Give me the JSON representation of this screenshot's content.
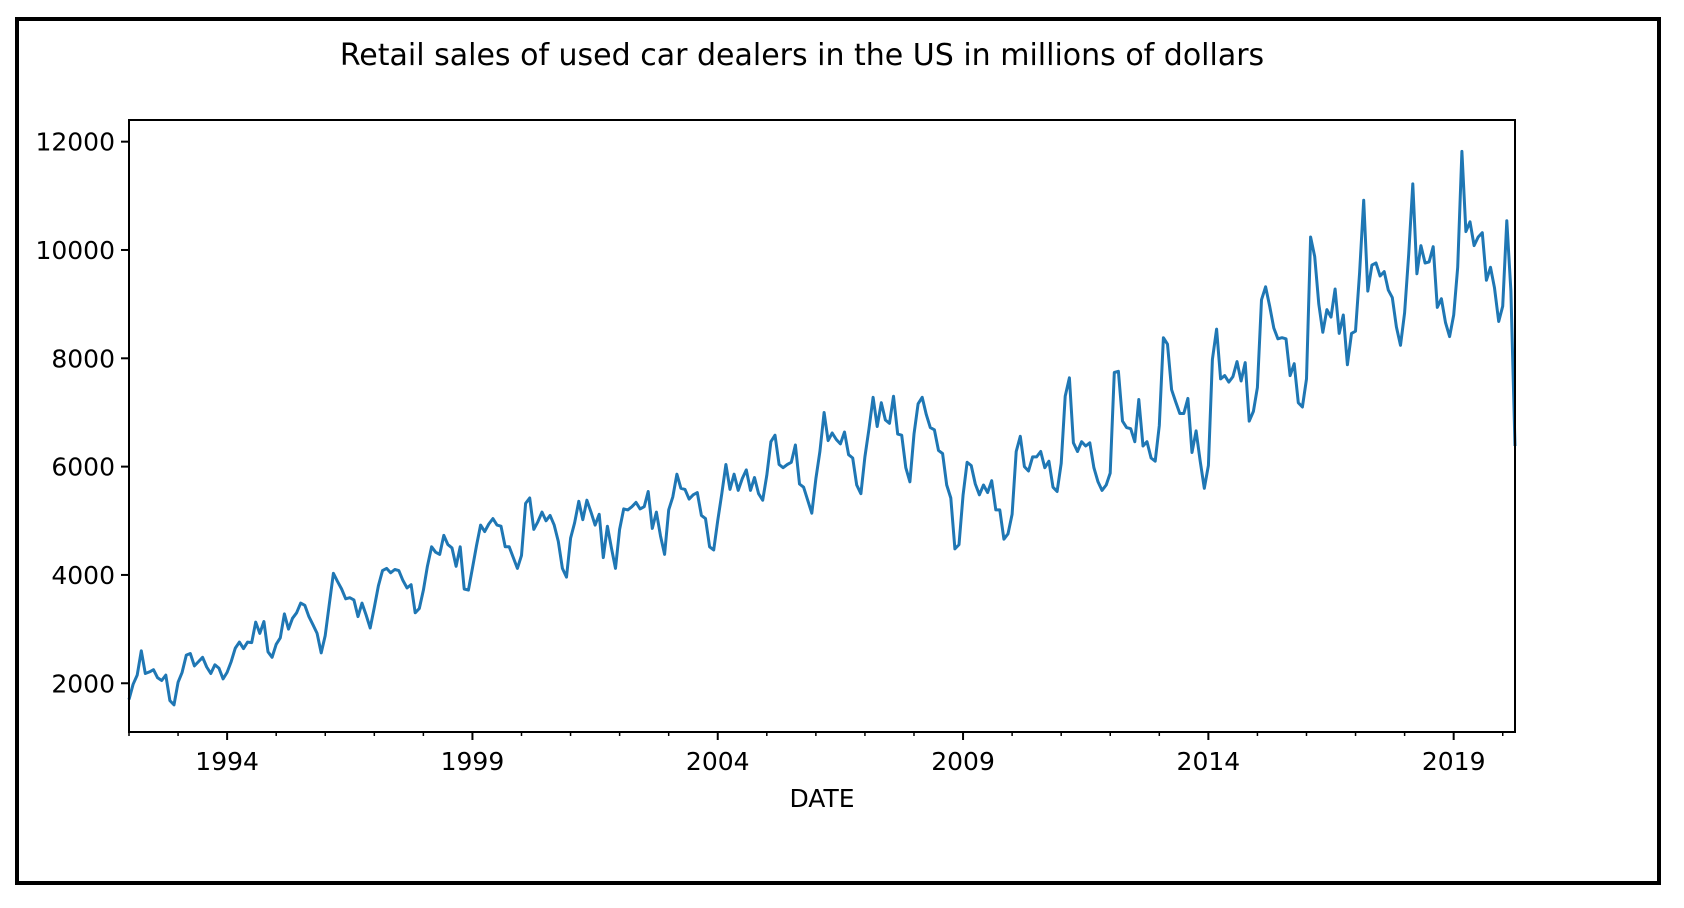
{
  "chart_data": {
    "type": "line",
    "title": "Retail sales of used car dealers in the US in millions of dollars",
    "xlabel": "DATE",
    "ylabel": "",
    "xlim": [
      1992.0,
      2020.25
    ],
    "ylim": [
      1100,
      12400
    ],
    "xticks": [
      1994,
      1999,
      2004,
      2009,
      2014,
      2019
    ],
    "xtick_labels": [
      "1994",
      "1999",
      "2004",
      "2009",
      "2014",
      "2019"
    ],
    "yticks": [
      2000,
      4000,
      6000,
      8000,
      10000,
      12000
    ],
    "ytick_labels": [
      "2000",
      "4000",
      "6000",
      "8000",
      "10000",
      "12000"
    ],
    "grid": false,
    "series": [
      {
        "name": "Retail sales of used car dealers",
        "color": "#1f77b4",
        "x": [
          1992.0,
          1992.083,
          1992.167,
          1992.25,
          1992.333,
          1992.417,
          1992.5,
          1992.583,
          1992.667,
          1992.75,
          1992.833,
          1992.917,
          1993.0,
          1993.083,
          1993.167,
          1993.25,
          1993.333,
          1993.417,
          1993.5,
          1993.583,
          1993.667,
          1993.75,
          1993.833,
          1993.917,
          1994.0,
          1994.083,
          1994.167,
          1994.25,
          1994.333,
          1994.417,
          1994.5,
          1994.583,
          1994.667,
          1994.75,
          1994.833,
          1994.917,
          1995.0,
          1995.083,
          1995.167,
          1995.25,
          1995.333,
          1995.417,
          1995.5,
          1995.583,
          1995.667,
          1995.75,
          1995.833,
          1995.917,
          1996.0,
          1996.083,
          1996.167,
          1996.25,
          1996.333,
          1996.417,
          1996.5,
          1996.583,
          1996.667,
          1996.75,
          1996.833,
          1996.917,
          1997.0,
          1997.083,
          1997.167,
          1997.25,
          1997.333,
          1997.417,
          1997.5,
          1997.583,
          1997.667,
          1997.75,
          1997.833,
          1997.917,
          1998.0,
          1998.083,
          1998.167,
          1998.25,
          1998.333,
          1998.417,
          1998.5,
          1998.583,
          1998.667,
          1998.75,
          1998.833,
          1998.917,
          1999.0,
          1999.083,
          1999.167,
          1999.25,
          1999.333,
          1999.417,
          1999.5,
          1999.583,
          1999.667,
          1999.75,
          1999.833,
          1999.917,
          2000.0,
          2000.083,
          2000.167,
          2000.25,
          2000.333,
          2000.417,
          2000.5,
          2000.583,
          2000.667,
          2000.75,
          2000.833,
          2000.917,
          2001.0,
          2001.083,
          2001.167,
          2001.25,
          2001.333,
          2001.417,
          2001.5,
          2001.583,
          2001.667,
          2001.75,
          2001.833,
          2001.917,
          2002.0,
          2002.083,
          2002.167,
          2002.25,
          2002.333,
          2002.417,
          2002.5,
          2002.583,
          2002.667,
          2002.75,
          2002.833,
          2002.917,
          2003.0,
          2003.083,
          2003.167,
          2003.25,
          2003.333,
          2003.417,
          2003.5,
          2003.583,
          2003.667,
          2003.75,
          2003.833,
          2003.917,
          2004.0,
          2004.083,
          2004.167,
          2004.25,
          2004.333,
          2004.417,
          2004.5,
          2004.583,
          2004.667,
          2004.75,
          2004.833,
          2004.917,
          2005.0,
          2005.083,
          2005.167,
          2005.25,
          2005.333,
          2005.417,
          2005.5,
          2005.583,
          2005.667,
          2005.75,
          2005.833,
          2005.917,
          2006.0,
          2006.083,
          2006.167,
          2006.25,
          2006.333,
          2006.417,
          2006.5,
          2006.583,
          2006.667,
          2006.75,
          2006.833,
          2006.917,
          2007.0,
          2007.083,
          2007.167,
          2007.25,
          2007.333,
          2007.417,
          2007.5,
          2007.583,
          2007.667,
          2007.75,
          2007.833,
          2007.917,
          2008.0,
          2008.083,
          2008.167,
          2008.25,
          2008.333,
          2008.417,
          2008.5,
          2008.583,
          2008.667,
          2008.75,
          2008.833,
          2008.917,
          2009.0,
          2009.083,
          2009.167,
          2009.25,
          2009.333,
          2009.417,
          2009.5,
          2009.583,
          2009.667,
          2009.75,
          2009.833,
          2009.917,
          2010.0,
          2010.083,
          2010.167,
          2010.25,
          2010.333,
          2010.417,
          2010.5,
          2010.583,
          2010.667,
          2010.75,
          2010.833,
          2010.917,
          2011.0,
          2011.083,
          2011.167,
          2011.25,
          2011.333,
          2011.417,
          2011.5,
          2011.583,
          2011.667,
          2011.75,
          2011.833,
          2011.917,
          2012.0,
          2012.083,
          2012.167,
          2012.25,
          2012.333,
          2012.417,
          2012.5,
          2012.583,
          2012.667,
          2012.75,
          2012.833,
          2012.917,
          2013.0,
          2013.083,
          2013.167,
          2013.25,
          2013.333,
          2013.417,
          2013.5,
          2013.583,
          2013.667,
          2013.75,
          2013.833,
          2013.917,
          2014.0,
          2014.083,
          2014.167,
          2014.25,
          2014.333,
          2014.417,
          2014.5,
          2014.583,
          2014.667,
          2014.75,
          2014.833,
          2014.917,
          2015.0,
          2015.083,
          2015.167,
          2015.25,
          2015.333,
          2015.417,
          2015.5,
          2015.583,
          2015.667,
          2015.75,
          2015.833,
          2015.917,
          2016.0,
          2016.083,
          2016.167,
          2016.25,
          2016.333,
          2016.417,
          2016.5,
          2016.583,
          2016.667,
          2016.75,
          2016.833,
          2016.917,
          2017.0,
          2017.083,
          2017.167,
          2017.25,
          2017.333,
          2017.417,
          2017.5,
          2017.583,
          2017.667,
          2017.75,
          2017.833,
          2017.917,
          2018.0,
          2018.083,
          2018.167,
          2018.25,
          2018.333,
          2018.417,
          2018.5,
          2018.583,
          2018.667,
          2018.75,
          2018.833,
          2018.917,
          2019.0,
          2019.083,
          2019.167,
          2019.25,
          2019.333,
          2019.417,
          2019.5,
          2019.583,
          2019.667,
          2019.75,
          2019.833,
          2019.917,
          2020.0,
          2020.083,
          2020.167,
          2020.25
        ],
        "y": [
          1700,
          1980,
          2150,
          2600,
          2180,
          2210,
          2250,
          2100,
          2050,
          2150,
          1680,
          1600,
          2020,
          2200,
          2520,
          2550,
          2320,
          2400,
          2480,
          2300,
          2180,
          2340,
          2280,
          2080,
          2200,
          2400,
          2650,
          2760,
          2640,
          2760,
          2750,
          3130,
          2920,
          3140,
          2580,
          2480,
          2720,
          2840,
          3280,
          3000,
          3200,
          3300,
          3480,
          3440,
          3230,
          3080,
          2920,
          2560,
          2880,
          3460,
          4030,
          3880,
          3740,
          3560,
          3580,
          3540,
          3230,
          3480,
          3260,
          3020,
          3400,
          3800,
          4080,
          4120,
          4040,
          4100,
          4080,
          3900,
          3760,
          3820,
          3300,
          3380,
          3720,
          4160,
          4520,
          4420,
          4380,
          4730,
          4560,
          4500,
          4160,
          4520,
          3740,
          3720,
          4120,
          4540,
          4920,
          4800,
          4940,
          5040,
          4920,
          4900,
          4520,
          4520,
          4320,
          4120,
          4360,
          5320,
          5420,
          4840,
          4980,
          5160,
          5000,
          5100,
          4920,
          4620,
          4120,
          3960,
          4680,
          4960,
          5360,
          5020,
          5380,
          5160,
          4920,
          5120,
          4320,
          4900,
          4500,
          4120,
          4840,
          5220,
          5200,
          5260,
          5340,
          5220,
          5260,
          5540,
          4860,
          5160,
          4720,
          4380,
          5200,
          5440,
          5860,
          5600,
          5580,
          5400,
          5480,
          5520,
          5100,
          5040,
          4520,
          4460,
          5000,
          5500,
          6040,
          5580,
          5860,
          5560,
          5780,
          5940,
          5560,
          5800,
          5500,
          5380,
          5840,
          6460,
          6580,
          6040,
          5980,
          6040,
          6080,
          6400,
          5680,
          5620,
          5380,
          5140,
          5780,
          6280,
          7000,
          6480,
          6620,
          6500,
          6420,
          6640,
          6220,
          6160,
          5660,
          5500,
          6180,
          6700,
          7280,
          6740,
          7180,
          6860,
          6800,
          7300,
          6600,
          6580,
          5980,
          5720,
          6600,
          7160,
          7280,
          6960,
          6720,
          6680,
          6300,
          6240,
          5660,
          5420,
          4480,
          4560,
          5480,
          6080,
          6020,
          5680,
          5480,
          5660,
          5520,
          5740,
          5200,
          5200,
          4660,
          4760,
          5120,
          6280,
          6560,
          6000,
          5920,
          6180,
          6180,
          6280,
          5980,
          6100,
          5620,
          5540,
          6060,
          7300,
          7640,
          6440,
          6280,
          6460,
          6380,
          6440,
          5980,
          5720,
          5560,
          5660,
          5880,
          7740,
          7760,
          6840,
          6720,
          6700,
          6460,
          7240,
          6380,
          6460,
          6160,
          6100,
          6760,
          8380,
          8260,
          7420,
          7200,
          6980,
          6980,
          7260,
          6260,
          6660,
          6100,
          5600,
          6020,
          7980,
          8540,
          7620,
          7680,
          7560,
          7660,
          7940,
          7580,
          7920,
          6840,
          7020,
          7460,
          9080,
          9320,
          8960,
          8560,
          8360,
          8380,
          8360,
          7680,
          7900,
          7180,
          7100,
          7620,
          10240,
          9880,
          9000,
          8480,
          8900,
          8760,
          9280,
          8460,
          8800,
          7880,
          8460,
          8500,
          9580,
          10920,
          9240,
          9720,
          9760,
          9520,
          9600,
          9260,
          9120,
          8580,
          8240,
          8840,
          9920,
          11220,
          9560,
          10080,
          9760,
          9780,
          10060,
          8940,
          9100,
          8660,
          8400,
          8800,
          9680,
          11820,
          10340,
          10520,
          10080,
          10240,
          10320,
          9440,
          9680,
          9300,
          8680,
          8960,
          10540,
          9240,
          6380
        ]
      }
    ]
  }
}
